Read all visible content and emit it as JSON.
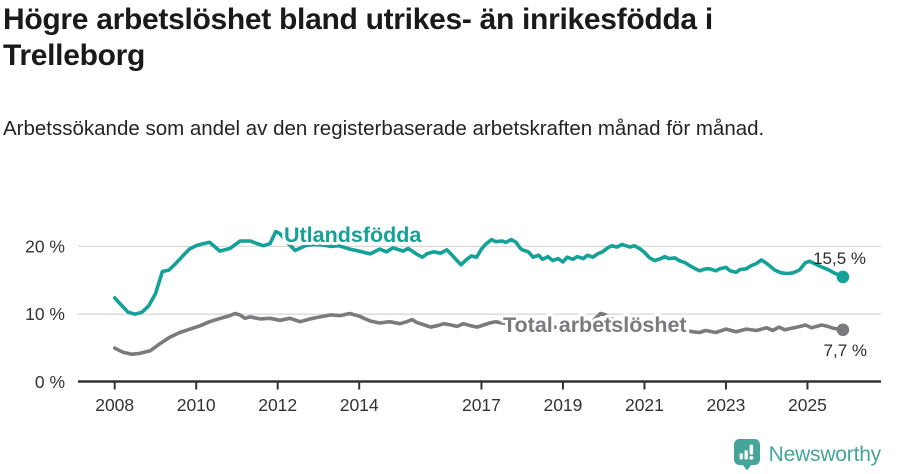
{
  "header": {
    "title": "Högre arbetslöshet bland utrikes- än inrikesfödda i Trelleborg",
    "subtitle": "Arbetssökande som andel av den registerbaserade arbetskraften månad för månad."
  },
  "footer": {
    "brand": "Newsworthy",
    "brand_color": "#45a49c",
    "icon": "speech-bubble-bar-chart-icon"
  },
  "colors": {
    "axis": "#333333",
    "grid": "#d9d9d9",
    "title_text": "#1a1a1a",
    "value_label_text": "#2b2b2b",
    "teal_series": "#14a198",
    "gray_series": "#7b7b7e"
  },
  "chart_data": {
    "type": "line",
    "title": "Högre arbetslöshet bland utrikes- än inrikesfödda i Trelleborg",
    "subtitle": "Arbetssökande som andel av den registerbaserade arbetskraften månad för månad.",
    "xlabel": "",
    "ylabel": "",
    "grid": "horizontal",
    "legend": "inline-labels",
    "xlim": [
      2007.1,
      2026.8
    ],
    "ylim": [
      0,
      24
    ],
    "x_ticks": [
      2008,
      2010,
      2012,
      2014,
      2017,
      2019,
      2021,
      2023,
      2025
    ],
    "x_tick_labels": [
      "2008",
      "2010",
      "2012",
      "2014",
      "2017",
      "2019",
      "2021",
      "2023",
      "2025"
    ],
    "y_ticks": [
      0,
      10,
      20
    ],
    "y_tick_labels": [
      "0 %",
      "10 %",
      "20 %"
    ],
    "series": [
      {
        "id": "utlandsfodda",
        "name": "Utlandsfödda",
        "color": "#14a198",
        "end_value": 15.5,
        "end_label": "15,5 %",
        "points": [
          [
            2008.0,
            12.4
          ],
          [
            2008.17,
            11.3
          ],
          [
            2008.33,
            10.3
          ],
          [
            2008.5,
            10.0
          ],
          [
            2008.67,
            10.3
          ],
          [
            2008.83,
            11.2
          ],
          [
            2009.0,
            13.0
          ],
          [
            2009.17,
            16.3
          ],
          [
            2009.33,
            16.5
          ],
          [
            2009.5,
            17.5
          ],
          [
            2009.67,
            18.6
          ],
          [
            2009.83,
            19.6
          ],
          [
            2010.0,
            20.1
          ],
          [
            2010.17,
            20.4
          ],
          [
            2010.33,
            20.6
          ],
          [
            2010.58,
            19.3
          ],
          [
            2010.83,
            19.7
          ],
          [
            2011.08,
            20.8
          ],
          [
            2011.33,
            20.8
          ],
          [
            2011.5,
            20.4
          ],
          [
            2011.65,
            20.1
          ],
          [
            2011.81,
            20.4
          ],
          [
            2011.95,
            22.2
          ],
          [
            2012.05,
            21.9
          ],
          [
            2012.25,
            20.5
          ],
          [
            2012.43,
            19.4
          ],
          [
            2012.68,
            20.1
          ],
          [
            2012.9,
            20.3
          ],
          [
            2013.1,
            20.2
          ],
          [
            2013.3,
            20.0
          ],
          [
            2013.5,
            20.1
          ],
          [
            2013.77,
            19.6
          ],
          [
            2014.0,
            19.3
          ],
          [
            2014.27,
            18.9
          ],
          [
            2014.5,
            19.6
          ],
          [
            2014.67,
            19.2
          ],
          [
            2014.83,
            19.8
          ],
          [
            2015.08,
            19.3
          ],
          [
            2015.2,
            19.7
          ],
          [
            2015.4,
            18.9
          ],
          [
            2015.55,
            18.4
          ],
          [
            2015.66,
            18.9
          ],
          [
            2015.82,
            19.2
          ],
          [
            2016.0,
            19.0
          ],
          [
            2016.15,
            19.5
          ],
          [
            2016.25,
            18.9
          ],
          [
            2016.4,
            17.9
          ],
          [
            2016.5,
            17.3
          ],
          [
            2016.64,
            18.1
          ],
          [
            2016.75,
            18.6
          ],
          [
            2016.88,
            18.4
          ],
          [
            2017.0,
            19.6
          ],
          [
            2017.1,
            20.3
          ],
          [
            2017.25,
            21.0
          ],
          [
            2017.35,
            20.7
          ],
          [
            2017.5,
            20.8
          ],
          [
            2017.6,
            20.6
          ],
          [
            2017.73,
            21.0
          ],
          [
            2017.85,
            20.6
          ],
          [
            2017.94,
            19.8
          ],
          [
            2018.0,
            19.5
          ],
          [
            2018.15,
            19.2
          ],
          [
            2018.27,
            18.4
          ],
          [
            2018.4,
            18.7
          ],
          [
            2018.5,
            18.1
          ],
          [
            2018.63,
            18.5
          ],
          [
            2018.75,
            17.9
          ],
          [
            2018.88,
            18.2
          ],
          [
            2019.0,
            17.7
          ],
          [
            2019.1,
            18.4
          ],
          [
            2019.25,
            18.1
          ],
          [
            2019.35,
            18.5
          ],
          [
            2019.5,
            18.2
          ],
          [
            2019.6,
            18.7
          ],
          [
            2019.73,
            18.4
          ],
          [
            2019.85,
            18.9
          ],
          [
            2019.97,
            19.2
          ],
          [
            2020.1,
            19.8
          ],
          [
            2020.2,
            20.1
          ],
          [
            2020.33,
            19.9
          ],
          [
            2020.45,
            20.3
          ],
          [
            2020.65,
            19.9
          ],
          [
            2020.75,
            20.1
          ],
          [
            2020.9,
            19.6
          ],
          [
            2021.0,
            19.1
          ],
          [
            2021.13,
            18.3
          ],
          [
            2021.25,
            17.9
          ],
          [
            2021.4,
            18.2
          ],
          [
            2021.5,
            18.5
          ],
          [
            2021.6,
            18.2
          ],
          [
            2021.75,
            18.3
          ],
          [
            2021.85,
            17.9
          ],
          [
            2022.0,
            17.6
          ],
          [
            2022.1,
            17.2
          ],
          [
            2022.25,
            16.7
          ],
          [
            2022.35,
            16.4
          ],
          [
            2022.5,
            16.7
          ],
          [
            2022.6,
            16.7
          ],
          [
            2022.75,
            16.4
          ],
          [
            2022.85,
            16.7
          ],
          [
            2023.0,
            16.9
          ],
          [
            2023.1,
            16.4
          ],
          [
            2023.25,
            16.2
          ],
          [
            2023.35,
            16.6
          ],
          [
            2023.5,
            16.7
          ],
          [
            2023.6,
            17.1
          ],
          [
            2023.75,
            17.5
          ],
          [
            2023.87,
            18.0
          ],
          [
            2023.95,
            17.7
          ],
          [
            2024.08,
            17.1
          ],
          [
            2024.2,
            16.5
          ],
          [
            2024.35,
            16.1
          ],
          [
            2024.5,
            16.0
          ],
          [
            2024.65,
            16.1
          ],
          [
            2024.8,
            16.5
          ],
          [
            2024.95,
            17.6
          ],
          [
            2025.05,
            17.8
          ],
          [
            2025.3,
            17.1
          ],
          [
            2025.5,
            16.6
          ],
          [
            2025.65,
            16.1
          ],
          [
            2025.87,
            15.5
          ]
        ]
      },
      {
        "id": "total-arbetsloshet",
        "name": "Total arbetslöshet",
        "color": "#7b7b7e",
        "end_value": 7.7,
        "end_label": "7,7 %",
        "points": [
          [
            2008.0,
            5.0
          ],
          [
            2008.2,
            4.4
          ],
          [
            2008.42,
            4.1
          ],
          [
            2008.6,
            4.2
          ],
          [
            2008.87,
            4.6
          ],
          [
            2009.1,
            5.6
          ],
          [
            2009.35,
            6.6
          ],
          [
            2009.6,
            7.3
          ],
          [
            2009.85,
            7.8
          ],
          [
            2010.1,
            8.3
          ],
          [
            2010.33,
            8.9
          ],
          [
            2010.6,
            9.4
          ],
          [
            2010.83,
            9.8
          ],
          [
            2010.95,
            10.1
          ],
          [
            2011.07,
            9.9
          ],
          [
            2011.2,
            9.4
          ],
          [
            2011.32,
            9.6
          ],
          [
            2011.57,
            9.3
          ],
          [
            2011.81,
            9.4
          ],
          [
            2012.06,
            9.1
          ],
          [
            2012.3,
            9.4
          ],
          [
            2012.55,
            8.9
          ],
          [
            2012.8,
            9.3
          ],
          [
            2013.04,
            9.6
          ],
          [
            2013.3,
            9.9
          ],
          [
            2013.53,
            9.8
          ],
          [
            2013.77,
            10.1
          ],
          [
            2014.0,
            9.7
          ],
          [
            2014.27,
            9.0
          ],
          [
            2014.5,
            8.7
          ],
          [
            2014.75,
            8.9
          ],
          [
            2015.0,
            8.6
          ],
          [
            2015.17,
            8.9
          ],
          [
            2015.3,
            9.2
          ],
          [
            2015.4,
            8.8
          ],
          [
            2015.6,
            8.4
          ],
          [
            2015.75,
            8.1
          ],
          [
            2015.92,
            8.3
          ],
          [
            2016.08,
            8.6
          ],
          [
            2016.25,
            8.4
          ],
          [
            2016.4,
            8.2
          ],
          [
            2016.56,
            8.6
          ],
          [
            2016.73,
            8.3
          ],
          [
            2016.9,
            8.1
          ],
          [
            2017.05,
            8.4
          ],
          [
            2017.2,
            8.7
          ],
          [
            2017.35,
            8.9
          ],
          [
            2017.5,
            8.7
          ],
          [
            2017.75,
            8.6
          ],
          [
            2018.0,
            8.5
          ],
          [
            2018.25,
            8.3
          ],
          [
            2018.5,
            8.2
          ],
          [
            2018.75,
            8.1
          ],
          [
            2019.0,
            8.0
          ],
          [
            2019.25,
            7.9
          ],
          [
            2019.5,
            7.9
          ],
          [
            2019.65,
            8.3
          ],
          [
            2019.8,
            9.4
          ],
          [
            2019.92,
            10.1
          ],
          [
            2020.05,
            9.9
          ],
          [
            2020.2,
            9.3
          ],
          [
            2020.35,
            8.9
          ],
          [
            2020.55,
            8.8
          ],
          [
            2020.75,
            8.6
          ],
          [
            2021.0,
            8.4
          ],
          [
            2021.25,
            8.2
          ],
          [
            2021.5,
            8.0
          ],
          [
            2021.75,
            7.8
          ],
          [
            2022.0,
            7.6
          ],
          [
            2022.2,
            7.4
          ],
          [
            2022.35,
            7.3
          ],
          [
            2022.5,
            7.6
          ],
          [
            2022.75,
            7.3
          ],
          [
            2023.0,
            7.8
          ],
          [
            2023.25,
            7.4
          ],
          [
            2023.5,
            7.8
          ],
          [
            2023.75,
            7.6
          ],
          [
            2024.0,
            8.0
          ],
          [
            2024.15,
            7.6
          ],
          [
            2024.3,
            8.1
          ],
          [
            2024.45,
            7.7
          ],
          [
            2024.6,
            7.9
          ],
          [
            2024.75,
            8.1
          ],
          [
            2024.95,
            8.4
          ],
          [
            2025.1,
            8.0
          ],
          [
            2025.35,
            8.4
          ],
          [
            2025.5,
            8.2
          ],
          [
            2025.65,
            7.9
          ],
          [
            2025.87,
            7.7
          ]
        ]
      }
    ]
  }
}
